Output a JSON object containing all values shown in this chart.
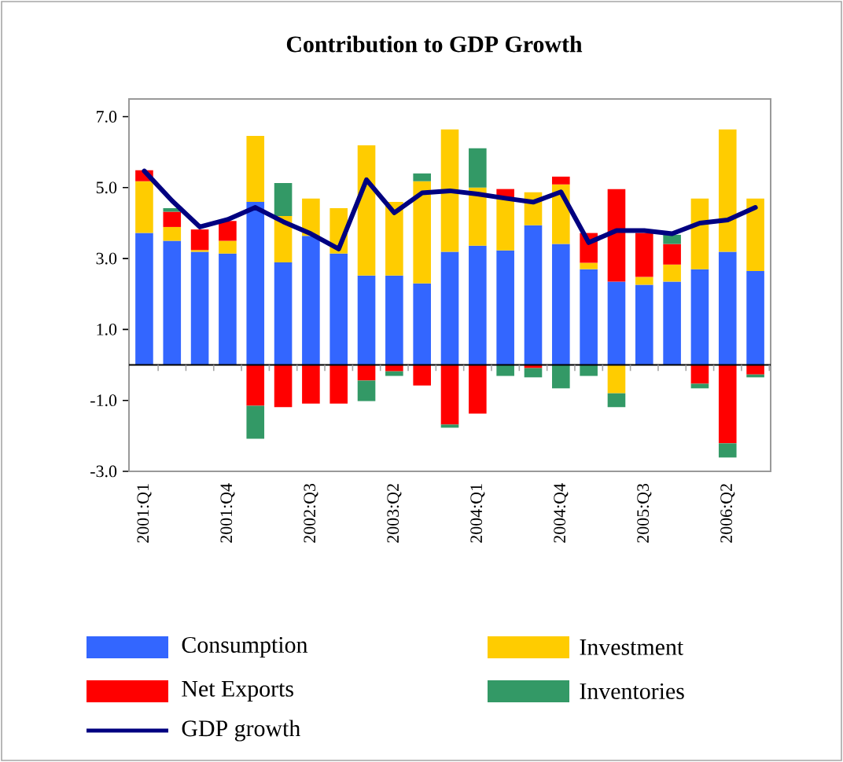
{
  "chart_data": {
    "type": "bar",
    "stacked": true,
    "title": "Contribution to GDP Growth",
    "categories": [
      "2001:Q1",
      null,
      null,
      "2001:Q4",
      null,
      null,
      "2002:Q3",
      null,
      null,
      "2003:Q2",
      null,
      null,
      "2004:Q1",
      null,
      null,
      "2004:Q4",
      null,
      null,
      "2005:Q3",
      null,
      null,
      "2006:Q2",
      null
    ],
    "ylim": [
      -3,
      7.5
    ],
    "yticks": [
      {
        "value": -3,
        "label": "-3.0"
      },
      {
        "value": -1,
        "label": "-1.0"
      },
      {
        "value": 1,
        "label": "1.0"
      },
      {
        "value": 3,
        "label": "3.0"
      },
      {
        "value": 5,
        "label": "5.0"
      },
      {
        "value": 7,
        "label": "7.0"
      }
    ],
    "legend": "bottom",
    "series": [
      {
        "name": "Consumption",
        "color": "#3366ff",
        "values": [
          3.72,
          3.5,
          3.19,
          3.14,
          4.6,
          2.89,
          3.64,
          3.14,
          2.52,
          2.52,
          2.3,
          3.19,
          3.36,
          3.23,
          3.94,
          3.41,
          2.7,
          2.35,
          2.26,
          2.35,
          2.7,
          3.19,
          2.65
        ]
      },
      {
        "name": "Investment",
        "color": "#ffcc00",
        "values": [
          1.46,
          0.39,
          0.05,
          0.36,
          1.86,
          1.31,
          1.05,
          1.28,
          3.67,
          2.08,
          2.88,
          3.45,
          1.64,
          1.5,
          0.93,
          1.68,
          0.18,
          -0.8,
          0.22,
          0.48,
          1.99,
          3.45,
          2.04
        ]
      },
      {
        "name": "Net Exports",
        "color": "#ff0000",
        "values": [
          0.31,
          0.43,
          0.58,
          0.56,
          -1.15,
          -1.19,
          -1.09,
          -1.09,
          -0.44,
          -0.18,
          -0.58,
          -1.68,
          -1.37,
          0.23,
          -0.09,
          0.22,
          0.84,
          2.61,
          1.24,
          0.58,
          -0.53,
          -2.21,
          -0.27
        ]
      },
      {
        "name": "Inventories",
        "color": "#339966",
        "values": [
          0,
          0.1,
          0,
          0,
          -0.93,
          0.93,
          0,
          0,
          -0.58,
          -0.13,
          0.22,
          -0.09,
          1.11,
          -0.31,
          -0.26,
          -0.66,
          -0.31,
          -0.39,
          0,
          0.26,
          -0.13,
          -0.4,
          -0.08
        ]
      },
      {
        "name": "GDP growth",
        "type": "line",
        "color": "#000080",
        "values": [
          5.47,
          4.63,
          3.89,
          4.1,
          4.44,
          4.04,
          3.7,
          3.27,
          5.22,
          4.29,
          4.85,
          4.91,
          4.82,
          4.7,
          4.59,
          4.88,
          3.45,
          3.79,
          3.79,
          3.7,
          4.0,
          4.09,
          4.44
        ]
      }
    ]
  }
}
